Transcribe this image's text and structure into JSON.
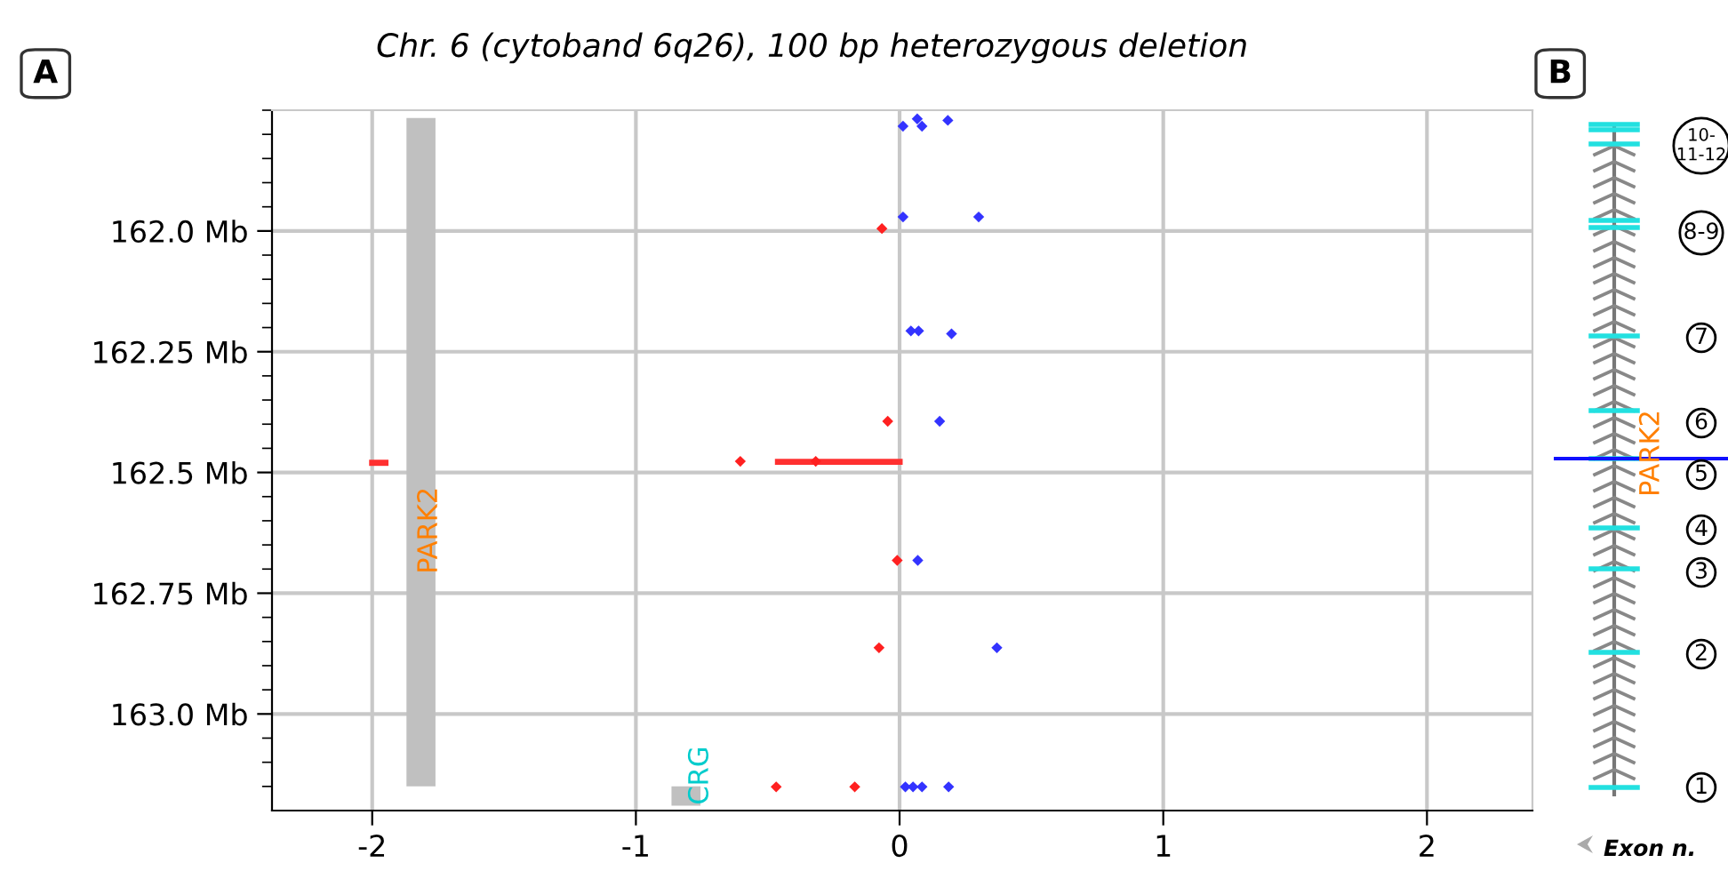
{
  "chart_data": [
    {
      "type": "scatter",
      "title": "Chr. 6 (cytoband 6q26), 100 bp heterozygous deletion",
      "annotations": [
        "A",
        "PARK2",
        "CRG"
      ],
      "xlim": [
        -2.38,
        2.4
      ],
      "xticks": [
        -2,
        -1,
        0,
        1,
        2
      ],
      "ylim": [
        163.2,
        161.75
      ],
      "yticks": [
        {
          "value": 162.0,
          "label": "162.0 Mb"
        },
        {
          "value": 162.25,
          "label": "162.25 Mb"
        },
        {
          "value": 162.5,
          "label": "162.5 Mb"
        },
        {
          "value": 162.75,
          "label": "162.75 Mb"
        },
        {
          "value": 163.0,
          "label": "163.0 Mb"
        }
      ],
      "grid": true,
      "series": [
        {
          "type": "bar",
          "color": "#c0c0c0",
          "x": [
            -1.815,
            -0.81
          ],
          "base": [
            161.766,
            163.15
          ],
          "values": [
            1.384,
            0.04
          ]
        },
        {
          "type": "scatter",
          "marker": "diamond",
          "color": "#3333ff",
          "x": [
            0.013,
            0.067,
            0.085,
            0.183,
            0.013,
            0.3,
            0.043,
            0.072,
            0.197,
            0.152,
            0.069,
            0.369,
            0.022,
            0.051,
            0.085,
            0.186
          ],
          "values": [
            161.783,
            161.768,
            161.783,
            161.771,
            161.971,
            161.971,
            162.207,
            162.207,
            162.213,
            162.394,
            162.682,
            162.863,
            163.151,
            163.151,
            163.151,
            163.151
          ]
        },
        {
          "type": "scatter",
          "marker": "diamond",
          "color": "#ff2020",
          "x": [
            -0.067,
            -0.045,
            -0.604,
            -0.318,
            -0.009,
            -0.078,
            -0.468,
            -0.17
          ],
          "values": [
            161.995,
            162.394,
            162.477,
            162.477,
            162.682,
            162.863,
            163.151,
            163.151
          ]
        },
        {
          "type": "line",
          "color": "#ff3030",
          "x": [
            -0.461,
            0.0
          ],
          "values": [
            162.478,
            162.478
          ]
        },
        {
          "type": "line",
          "color": "#ff3030",
          "x": [
            -2.0,
            -1.95
          ],
          "values": [
            162.48,
            162.48
          ]
        }
      ]
    },
    {
      "type": "other",
      "title": "B",
      "annotations": [
        "10-\n11-12",
        "8-9",
        "7",
        "6",
        "5",
        "4",
        "3",
        "2",
        "1",
        "PARK2",
        "Exon n."
      ]
    }
  ]
}
